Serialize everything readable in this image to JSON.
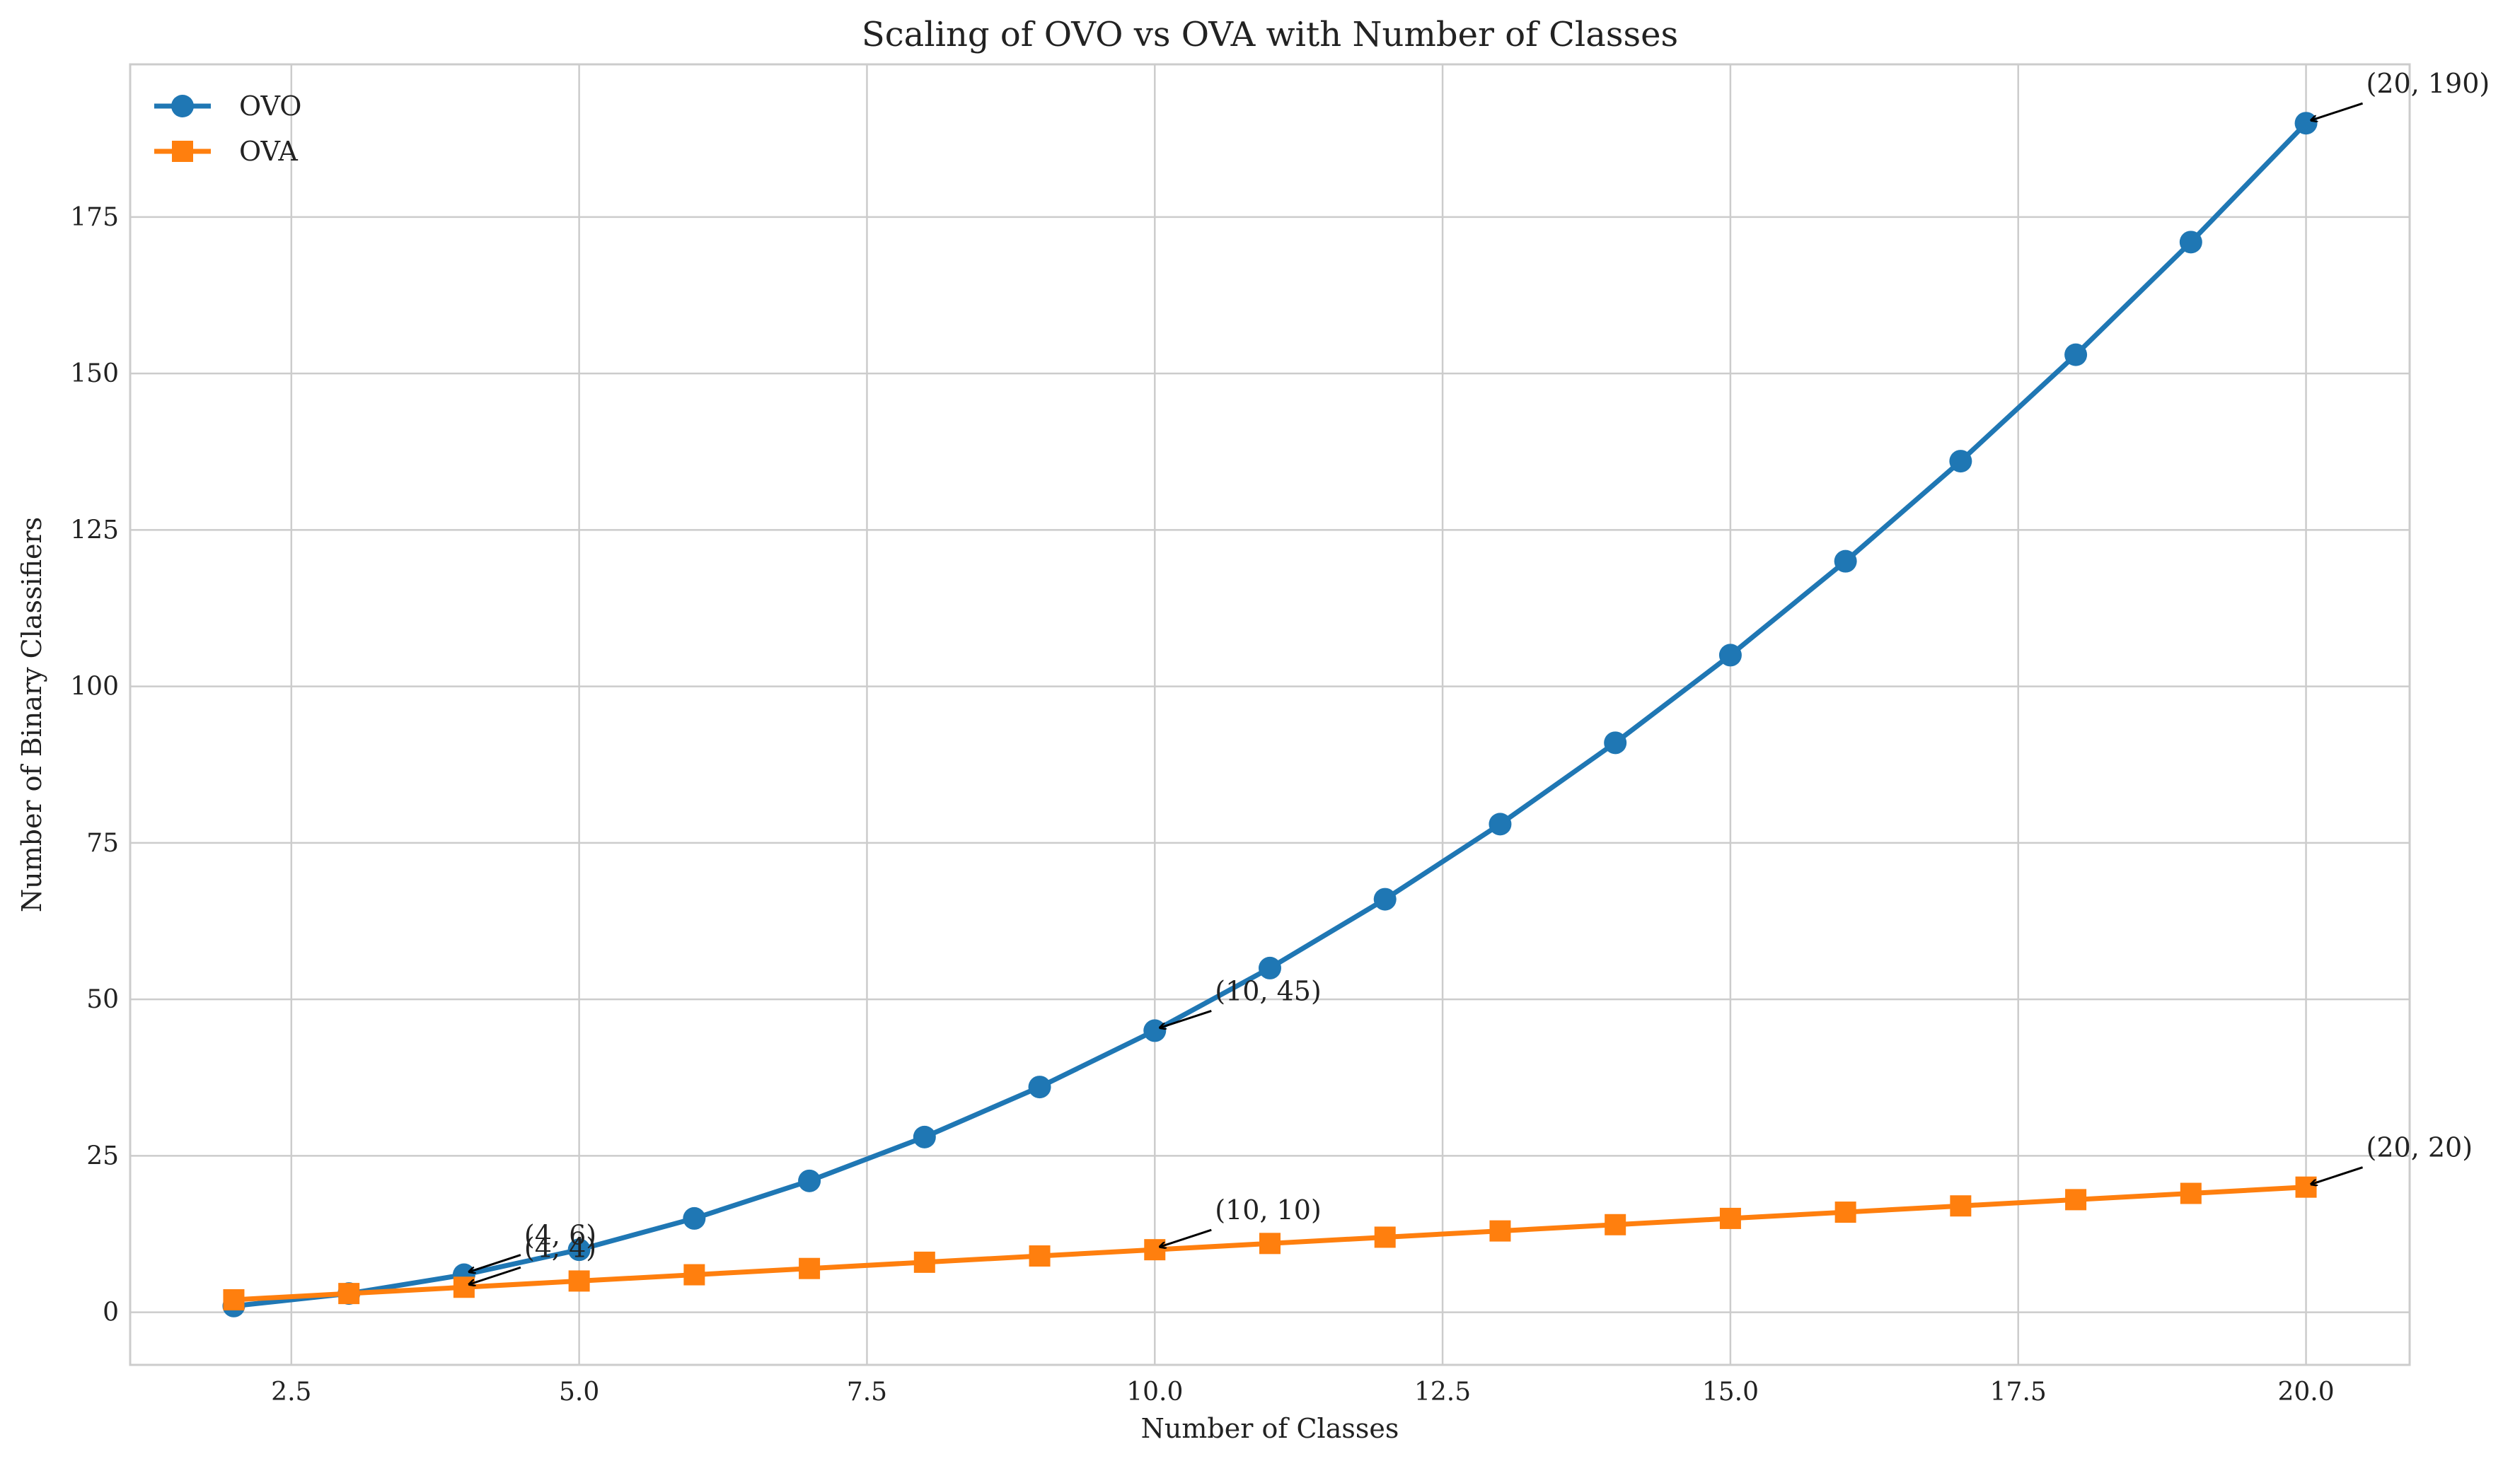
{
  "chart_data": {
    "type": "line",
    "title": "Scaling of OVO vs OVA with Number of Classes",
    "xlabel": "Number of Classes",
    "ylabel": "Number of Binary Classifiers",
    "xlim": [
      1.1,
      20.9
    ],
    "ylim": [
      -8.4,
      199.4
    ],
    "xticks": [
      2.5,
      5.0,
      7.5,
      10.0,
      12.5,
      15.0,
      17.5,
      20.0
    ],
    "xtick_labels": [
      "2.5",
      "5.0",
      "7.5",
      "10.0",
      "12.5",
      "15.0",
      "17.5",
      "20.0"
    ],
    "yticks": [
      0,
      25,
      50,
      75,
      100,
      125,
      150,
      175
    ],
    "ytick_labels": [
      "0",
      "25",
      "50",
      "75",
      "100",
      "125",
      "150",
      "175"
    ],
    "grid": true,
    "legend_position": "top-left",
    "x": [
      2,
      3,
      4,
      5,
      6,
      7,
      8,
      9,
      10,
      11,
      12,
      13,
      14,
      15,
      16,
      17,
      18,
      19,
      20
    ],
    "series": [
      {
        "name": "OVO",
        "marker": "circle",
        "color": "#1f77b4",
        "values": [
          1,
          3,
          6,
          10,
          15,
          21,
          28,
          36,
          45,
          55,
          66,
          78,
          91,
          105,
          120,
          136,
          153,
          171,
          190
        ]
      },
      {
        "name": "OVA",
        "marker": "square",
        "color": "#ff7f0e",
        "values": [
          2,
          3,
          4,
          5,
          6,
          7,
          8,
          9,
          10,
          11,
          12,
          13,
          14,
          15,
          16,
          17,
          18,
          19,
          20
        ]
      }
    ],
    "annotations": [
      {
        "text": "(4, 6)",
        "x": 4,
        "y": 6
      },
      {
        "text": "(10, 45)",
        "x": 10,
        "y": 45
      },
      {
        "text": "(20, 190)",
        "x": 20,
        "y": 190
      },
      {
        "text": "(4, 4)",
        "x": 4,
        "y": 4
      },
      {
        "text": "(10, 10)",
        "x": 10,
        "y": 10
      },
      {
        "text": "(20, 20)",
        "x": 20,
        "y": 20
      }
    ]
  }
}
